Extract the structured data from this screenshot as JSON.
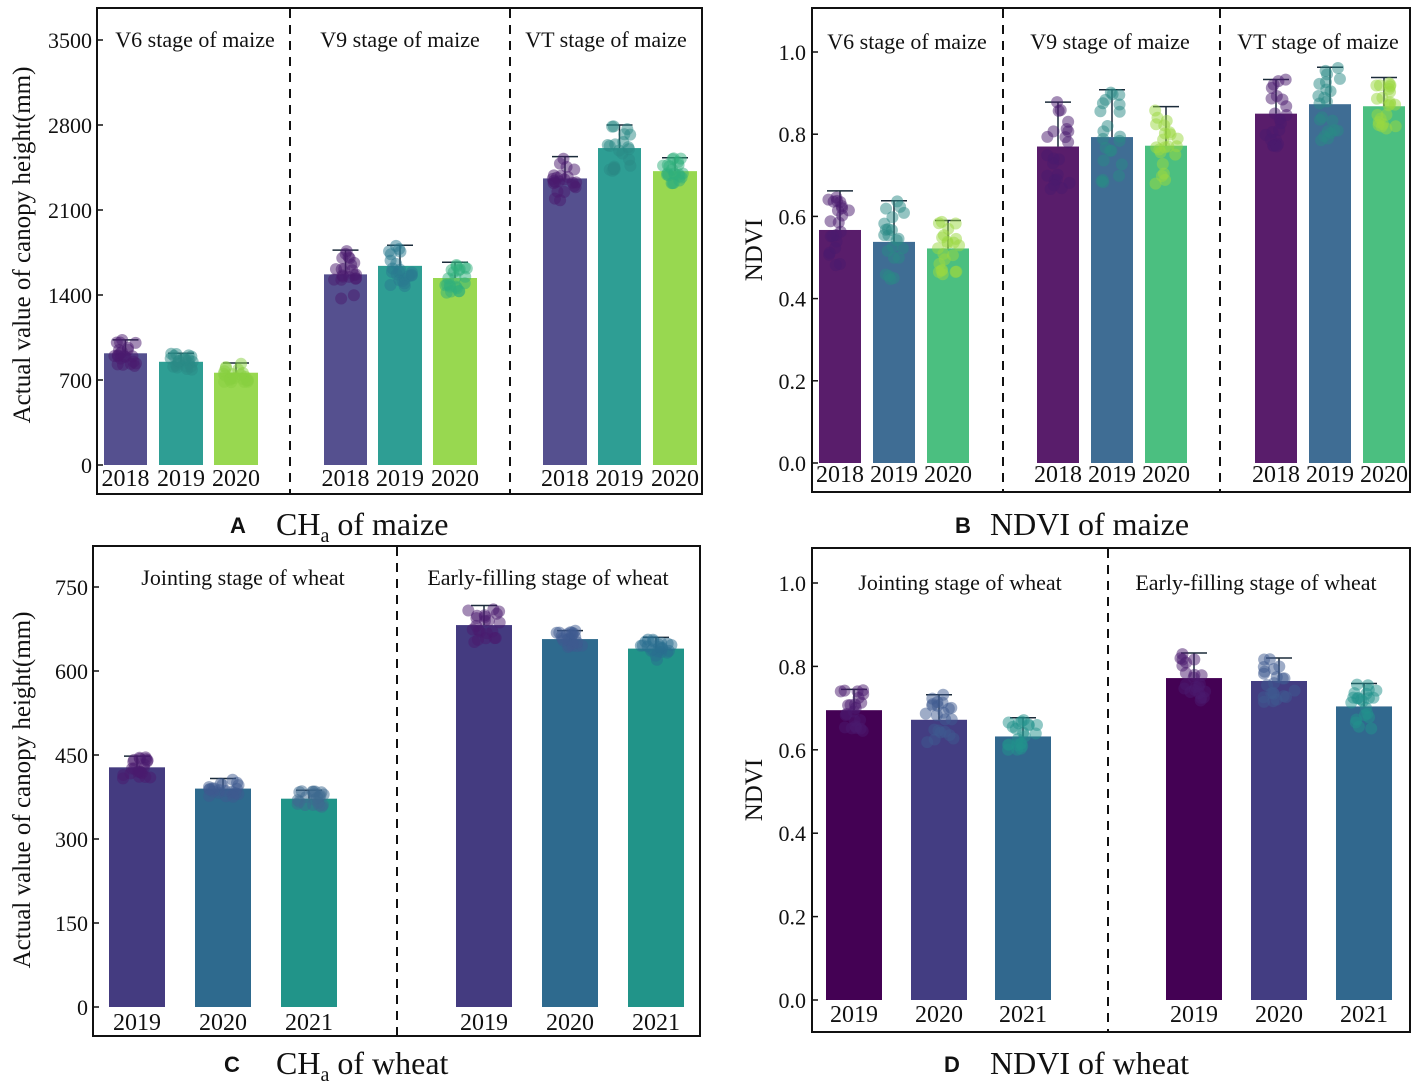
{
  "figure": {
    "panels": [
      {
        "letter": "A",
        "caption_main": "CH",
        "caption_sub": "a",
        "caption_rest": " of maize"
      },
      {
        "letter": "B",
        "caption_main": "NDVI of maize",
        "caption_sub": "",
        "caption_rest": ""
      },
      {
        "letter": "C",
        "caption_main": "CH",
        "caption_sub": "a",
        "caption_rest": " of wheat"
      },
      {
        "letter": "D",
        "caption_main": "NDVI of wheat",
        "caption_sub": "",
        "caption_rest": ""
      }
    ]
  },
  "chart_data": [
    {
      "type": "bar",
      "title": "CHa of maize",
      "ylabel": "Actual value of canopy height(mm)",
      "ylim": [
        0,
        3700
      ],
      "yticks": [
        0,
        700,
        1400,
        2100,
        2800,
        3500
      ],
      "groups": [
        {
          "label": "V6 stage of maize",
          "categories": [
            "2018",
            "2019",
            "2020"
          ],
          "values": [
            920,
            850,
            760
          ],
          "errors": [
            110,
            70,
            80
          ],
          "colors": [
            "#55508f",
            "#2e9e94",
            "#98d850"
          ],
          "dot_colors": [
            "#4a1a6e",
            "#2a8a86",
            "#88d040"
          ]
        },
        {
          "label": "V9 stage of maize",
          "categories": [
            "2018",
            "2019",
            "2020"
          ],
          "values": [
            1570,
            1640,
            1540
          ],
          "errors": [
            200,
            170,
            130
          ],
          "colors": [
            "#55508f",
            "#2e9e94",
            "#98d850"
          ],
          "dot_colors": [
            "#4a1a6e",
            "#2a7a90",
            "#2fb07c"
          ]
        },
        {
          "label": "VT stage of maize",
          "categories": [
            "2018",
            "2019",
            "2020"
          ],
          "values": [
            2360,
            2610,
            2420
          ],
          "errors": [
            180,
            190,
            110
          ],
          "colors": [
            "#55508f",
            "#2e9e94",
            "#98d850"
          ],
          "dot_colors": [
            "#4a1a6e",
            "#2a8a86",
            "#2fb07c"
          ]
        }
      ]
    },
    {
      "type": "bar",
      "title": "NDVI of maize",
      "ylabel": "NDVI",
      "ylim": [
        -0.07,
        1.1
      ],
      "yticks": [
        "0.0",
        "0.2",
        "0.4",
        "0.6",
        "0.8",
        "1.0"
      ],
      "groups": [
        {
          "label": "V6 stage of maize",
          "categories": [
            "2018",
            "2019",
            "2020"
          ],
          "values": [
            0.567,
            0.538,
            0.522
          ],
          "errors": [
            0.095,
            0.1,
            0.068
          ],
          "colors": [
            "#591d6b",
            "#3f6d94",
            "#4bbf80"
          ],
          "dot_colors": [
            "#4a1a6e",
            "#2a8a86",
            "#9ad840"
          ]
        },
        {
          "label": "V9 stage of maize",
          "categories": [
            "2018",
            "2019",
            "2020"
          ],
          "values": [
            0.77,
            0.793,
            0.772
          ],
          "errors": [
            0.108,
            0.115,
            0.095
          ],
          "colors": [
            "#591d6b",
            "#3f6d94",
            "#4bbf80"
          ],
          "dot_colors": [
            "#4a1a6e",
            "#2a8a86",
            "#9ad840"
          ]
        },
        {
          "label": "VT stage of maize",
          "categories": [
            "2018",
            "2019",
            "2020"
          ],
          "values": [
            0.85,
            0.873,
            0.868
          ],
          "errors": [
            0.083,
            0.09,
            0.07
          ],
          "colors": [
            "#591d6b",
            "#3f6d94",
            "#4bbf80"
          ],
          "dot_colors": [
            "#4a1a6e",
            "#2a8a86",
            "#9ad840"
          ]
        }
      ]
    },
    {
      "type": "bar",
      "title": "CHa of wheat",
      "ylabel": "Actual value of canopy height(mm)",
      "ylim": [
        -15,
        840
      ],
      "yticks": [
        0,
        150,
        300,
        450,
        600,
        750
      ],
      "groups": [
        {
          "label": "Jointing stage of wheat",
          "categories": [
            "2019",
            "2020",
            "2021"
          ],
          "values": [
            428,
            390,
            372
          ],
          "errors": [
            20,
            18,
            15
          ],
          "colors": [
            "#443b80",
            "#2e6a8e",
            "#219489"
          ],
          "dot_colors": [
            "#4a1a6e",
            "#3d5a90",
            "#3d6a90"
          ]
        },
        {
          "label": "Early-filling stage of wheat",
          "categories": [
            "2019",
            "2020",
            "2021"
          ],
          "values": [
            682,
            657,
            640
          ],
          "errors": [
            35,
            15,
            20
          ],
          "colors": [
            "#443b80",
            "#2e6a8e",
            "#219489"
          ],
          "dot_colors": [
            "#4a1a6e",
            "#3d5a90",
            "#2a6e90"
          ]
        }
      ]
    },
    {
      "type": "bar",
      "title": "NDVI of wheat",
      "ylabel": "NDVI",
      "ylim": [
        -0.04,
        1.1
      ],
      "yticks": [
        "0.0",
        "0.2",
        "0.4",
        "0.6",
        "0.8",
        "1.0"
      ],
      "groups": [
        {
          "label": "Jointing stage of wheat",
          "categories": [
            "2019",
            "2020",
            "2021"
          ],
          "values": [
            0.695,
            0.672,
            0.632
          ],
          "errors": [
            0.05,
            0.06,
            0.045
          ],
          "colors": [
            "#440154",
            "#433d82",
            "#31688e"
          ],
          "dot_colors": [
            "#4a1a6e",
            "#3d5a90",
            "#21918c"
          ]
        },
        {
          "label": "Early-filling stage of wheat",
          "categories": [
            "2019",
            "2020",
            "2021"
          ],
          "values": [
            0.772,
            0.765,
            0.704
          ],
          "errors": [
            0.06,
            0.055,
            0.055
          ],
          "colors": [
            "#440154",
            "#433d82",
            "#31688e"
          ],
          "dot_colors": [
            "#4a1a6e",
            "#3d5a90",
            "#21918c"
          ]
        }
      ]
    }
  ]
}
